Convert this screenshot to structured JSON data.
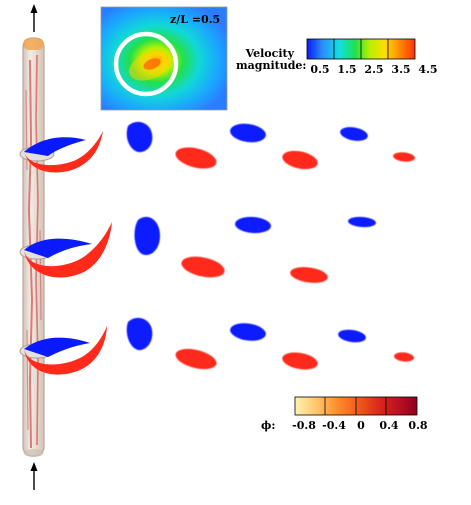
{
  "inset": {
    "title": "z/L =0.5"
  },
  "velocity_legend": {
    "title_line1": "Velocity",
    "title_line2": "magnitude:",
    "ticks": [
      "0.5",
      "1.5",
      "2.5",
      "3.5",
      "4.5"
    ],
    "colors": [
      "#0a1aff",
      "#2b8cff",
      "#11e0e0",
      "#22e04a",
      "#b8f000",
      "#ffdd00",
      "#ff8800",
      "#ff3300"
    ]
  },
  "phi_legend": {
    "symbol": "ϕ:",
    "ticks": [
      "-0.8",
      "-0.4",
      "0",
      "0.4",
      "0.8"
    ],
    "colors": [
      "#fff2b0",
      "#ffc46a",
      "#ff8c2a",
      "#f05a1a",
      "#d8261a",
      "#b81022",
      "#8e0020"
    ]
  },
  "colors": {
    "positive_vortex": "#ff2a1a",
    "negative_vortex": "#0a1aff",
    "pole": "#e8d8c8",
    "pole_streak": "#c0202a"
  },
  "arrows": [
    "up",
    "up"
  ]
}
